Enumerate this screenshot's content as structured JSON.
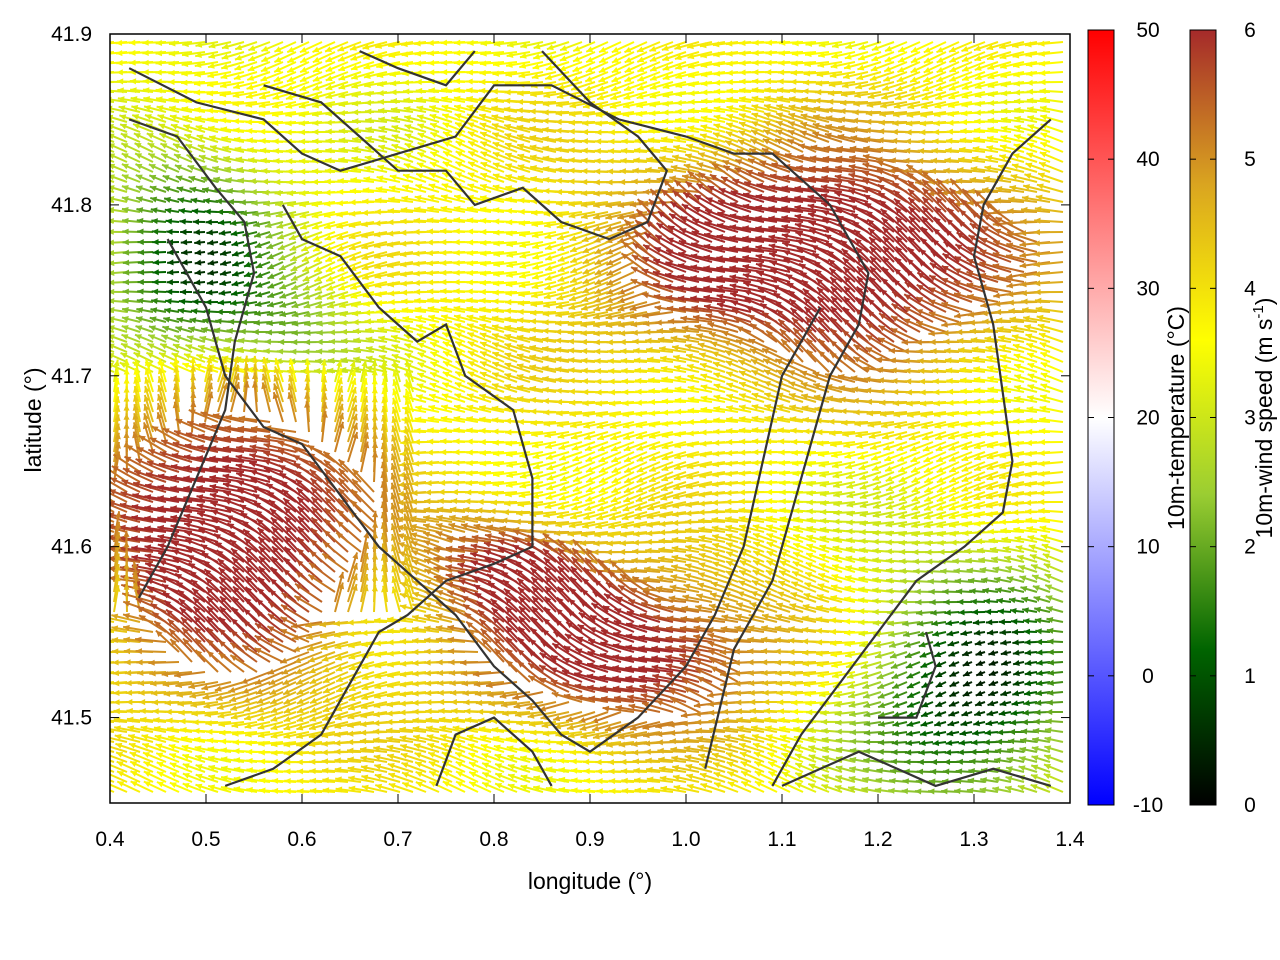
{
  "chart_data": {
    "type": "vector-field",
    "xlabel": "longitude (°)",
    "ylabel": "latitude (°)",
    "xlim": [
      0.4,
      1.4
    ],
    "ylim": [
      41.45,
      41.9
    ],
    "xticks": [
      "0.4",
      "0.5",
      "0.6",
      "0.7",
      "0.8",
      "0.9",
      "1.0",
      "1.1",
      "1.2",
      "1.3",
      "1.4"
    ],
    "yticks": [
      "41.5",
      "41.6",
      "41.7",
      "41.8",
      "41.9"
    ],
    "vector_color_by": "10m-wind speed",
    "colorbars": [
      {
        "label": "10m-temperature (°C)",
        "range": [
          -10,
          50
        ],
        "ticks": [
          "-10",
          "0",
          "10",
          "20",
          "30",
          "40",
          "50"
        ],
        "stops": [
          "#0000ff",
          "#ffffff",
          "#ff0000"
        ]
      },
      {
        "label": "10m-wind speed (m s",
        "label_sup": "-1",
        "label_end": ")",
        "range": [
          0,
          6
        ],
        "ticks": [
          "0",
          "1",
          "2",
          "3",
          "4",
          "5",
          "6"
        ],
        "stops": [
          "#000000",
          "#006400",
          "#9acd32",
          "#ffff00",
          "#daa520",
          "#a52a2a"
        ]
      }
    ],
    "contours": [
      [
        [
          0.42,
          41.88
        ],
        [
          0.49,
          41.86
        ],
        [
          0.56,
          41.85
        ],
        [
          0.6,
          41.83
        ],
        [
          0.64,
          41.82
        ],
        [
          0.7,
          41.83
        ],
        [
          0.76,
          41.84
        ],
        [
          0.8,
          41.87
        ],
        [
          0.86,
          41.87
        ],
        [
          0.93,
          41.85
        ],
        [
          1.0,
          41.84
        ],
        [
          1.05,
          41.83
        ],
        [
          1.09,
          41.83
        ],
        [
          1.15,
          41.8
        ],
        [
          1.19,
          41.76
        ],
        [
          1.18,
          41.73
        ],
        [
          1.15,
          41.7
        ],
        [
          1.12,
          41.64
        ],
        [
          1.09,
          41.58
        ],
        [
          1.05,
          41.54
        ],
        [
          1.02,
          41.47
        ]
      ],
      [
        [
          0.46,
          41.78
        ],
        [
          0.5,
          41.74
        ],
        [
          0.52,
          41.7
        ],
        [
          0.56,
          41.67
        ],
        [
          0.6,
          41.66
        ],
        [
          0.64,
          41.63
        ],
        [
          0.68,
          41.6
        ],
        [
          0.72,
          41.58
        ],
        [
          0.76,
          41.56
        ],
        [
          0.8,
          41.53
        ],
        [
          0.84,
          41.51
        ],
        [
          0.87,
          41.49
        ],
        [
          0.9,
          41.48
        ],
        [
          0.95,
          41.5
        ],
        [
          1.0,
          41.53
        ],
        [
          1.03,
          41.56
        ],
        [
          1.06,
          41.6
        ],
        [
          1.08,
          41.65
        ],
        [
          1.1,
          41.7
        ],
        [
          1.14,
          41.74
        ]
      ],
      [
        [
          0.42,
          41.85
        ],
        [
          0.47,
          41.84
        ],
        [
          0.51,
          41.81
        ],
        [
          0.54,
          41.79
        ],
        [
          0.55,
          41.76
        ],
        [
          0.53,
          41.72
        ],
        [
          0.52,
          41.68
        ],
        [
          0.49,
          41.64
        ],
        [
          0.46,
          41.6
        ],
        [
          0.43,
          41.57
        ]
      ],
      [
        [
          0.58,
          41.8
        ],
        [
          0.6,
          41.78
        ],
        [
          0.64,
          41.77
        ],
        [
          0.68,
          41.74
        ],
        [
          0.72,
          41.72
        ],
        [
          0.75,
          41.73
        ],
        [
          0.77,
          41.7
        ],
        [
          0.82,
          41.68
        ],
        [
          0.84,
          41.64
        ],
        [
          0.84,
          41.6
        ],
        [
          0.8,
          41.59
        ],
        [
          0.75,
          41.58
        ],
        [
          0.71,
          41.56
        ],
        [
          0.68,
          41.55
        ],
        [
          0.66,
          41.53
        ],
        [
          0.62,
          41.49
        ],
        [
          0.57,
          41.47
        ],
        [
          0.52,
          41.46
        ]
      ],
      [
        [
          0.85,
          41.89
        ],
        [
          0.9,
          41.86
        ],
        [
          0.95,
          41.84
        ],
        [
          0.98,
          41.82
        ],
        [
          0.96,
          41.79
        ],
        [
          0.92,
          41.78
        ],
        [
          0.87,
          41.79
        ],
        [
          0.83,
          41.81
        ],
        [
          0.78,
          41.8
        ],
        [
          0.75,
          41.82
        ],
        [
          0.7,
          41.82
        ],
        [
          0.66,
          41.84
        ],
        [
          0.62,
          41.86
        ],
        [
          0.56,
          41.87
        ]
      ],
      [
        [
          1.38,
          41.85
        ],
        [
          1.34,
          41.83
        ],
        [
          1.31,
          41.8
        ],
        [
          1.3,
          41.77
        ],
        [
          1.32,
          41.73
        ],
        [
          1.33,
          41.69
        ],
        [
          1.34,
          41.65
        ],
        [
          1.33,
          41.62
        ],
        [
          1.29,
          41.6
        ],
        [
          1.24,
          41.58
        ],
        [
          1.2,
          41.55
        ],
        [
          1.16,
          41.52
        ],
        [
          1.12,
          41.49
        ],
        [
          1.09,
          41.46
        ]
      ],
      [
        [
          1.2,
          41.5
        ],
        [
          1.24,
          41.5
        ],
        [
          1.26,
          41.53
        ],
        [
          1.25,
          41.55
        ]
      ],
      [
        [
          1.1,
          41.46
        ],
        [
          1.14,
          41.47
        ],
        [
          1.18,
          41.48
        ],
        [
          1.22,
          41.47
        ],
        [
          1.26,
          41.46
        ],
        [
          1.32,
          41.47
        ],
        [
          1.38,
          41.46
        ]
      ],
      [
        [
          0.66,
          41.89
        ],
        [
          0.7,
          41.88
        ],
        [
          0.75,
          41.87
        ],
        [
          0.78,
          41.89
        ]
      ],
      [
        [
          0.74,
          41.46
        ],
        [
          0.76,
          41.49
        ],
        [
          0.8,
          41.5
        ],
        [
          0.84,
          41.48
        ],
        [
          0.86,
          41.46
        ]
      ]
    ]
  }
}
